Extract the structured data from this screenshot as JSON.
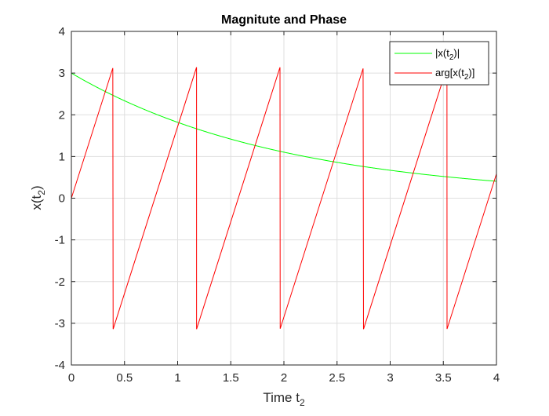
{
  "chart_data": {
    "type": "line",
    "title": "Magnitute and Phase",
    "xlabel": "Time t",
    "xlabel_sub": "2",
    "ylabel": "x(t",
    "ylabel_sub": "2",
    "ylabel_close": ")",
    "xlim": [
      0,
      4
    ],
    "ylim": [
      -4,
      4
    ],
    "xticks": [
      "0",
      "0.5",
      "1",
      "1.5",
      "2",
      "2.5",
      "3",
      "3.5",
      "4"
    ],
    "yticks": [
      "4",
      "3",
      "2",
      "1",
      "0",
      "-1",
      "-2",
      "-3",
      "-4"
    ],
    "grid": true,
    "legend_position": "top-right",
    "series": [
      {
        "name": "|x(t_2)|",
        "legend": {
          "pre": "|x(t",
          "sub": "2",
          "post": ")|"
        },
        "color": "#00ff00",
        "function": "magnitude",
        "amplitude": 3,
        "decay_rate": 0.5
      },
      {
        "name": "arg[x(t_2)]",
        "legend": {
          "pre": "arg[x(t",
          "sub": "2",
          "post": ")]"
        },
        "color": "#ff0000",
        "function": "wrapped_phase",
        "omega": 8,
        "wrap_points": [
          0.393,
          1.178,
          1.963,
          2.749,
          3.534
        ]
      }
    ]
  }
}
